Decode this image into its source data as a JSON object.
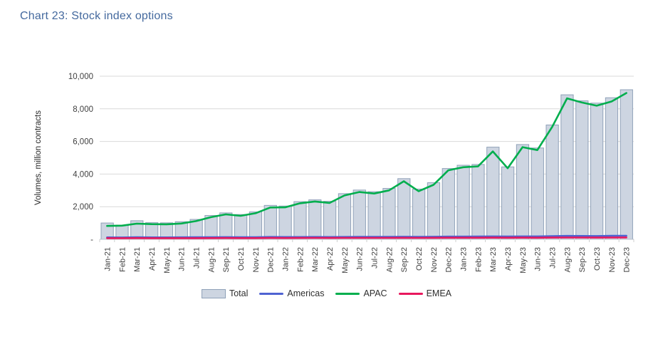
{
  "page": {
    "title": "Chart 23: Stock index options"
  },
  "colors": {
    "title_text": "#44699e",
    "bar_fill": "#cdd5e1",
    "bar_border": "#8fa1b8",
    "americas_line": "#4f63d2",
    "apac_line": "#00ae4d",
    "emea_line": "#e8185d",
    "gridline": "#d9d9d9",
    "axis_text": "#3f3f3f"
  },
  "chart_data": {
    "type": "bar",
    "subtype": "bar-with-lines-combo",
    "title": "Chart 23: Stock index options",
    "xlabel": "",
    "ylabel": "Volumes, million contracts",
    "ylim": [
      0,
      10000
    ],
    "ytick_interval": 2000,
    "ytick_labels": [
      "-",
      "2,000",
      "4,000",
      "6,000",
      "8,000",
      "10,000"
    ],
    "grid": "horizontal",
    "legend_position": "bottom",
    "categories": [
      "Jan-21",
      "Feb-21",
      "Mar-21",
      "Apr-21",
      "May-21",
      "Jun-21",
      "Jul-21",
      "Aug-21",
      "Sep-21",
      "Oct-21",
      "Nov-21",
      "Dec-21",
      "Jan-22",
      "Feb-22",
      "Mar-22",
      "Apr-22",
      "May-22",
      "Jun-22",
      "Jul-22",
      "Aug-22",
      "Sep-22",
      "Oct-22",
      "Nov-22",
      "Dec-22",
      "Jan-23",
      "Feb-23",
      "Mar-23",
      "Apr-23",
      "May-23",
      "Jun-23",
      "Jul-23",
      "Aug-23",
      "Sep-23",
      "Oct-23",
      "Nov-23",
      "Dec-23"
    ],
    "series": [
      {
        "name": "Total",
        "type": "bar",
        "color": "#cdd5e1",
        "border": "#8fa1b8",
        "values": [
          1000,
          870,
          1140,
          1020,
          1010,
          1080,
          1220,
          1460,
          1620,
          1520,
          1680,
          2080,
          2040,
          2310,
          2420,
          2330,
          2800,
          3020,
          2920,
          3120,
          3720,
          3080,
          3470,
          4340,
          4540,
          4590,
          5650,
          4440,
          5810,
          5600,
          7010,
          8860,
          8490,
          8350,
          8680,
          9170
        ]
      },
      {
        "name": "Americas",
        "type": "line",
        "color": "#4f63d2",
        "values": [
          120,
          115,
          125,
          120,
          118,
          122,
          126,
          130,
          135,
          128,
          132,
          142,
          138,
          140,
          144,
          140,
          146,
          150,
          148,
          152,
          158,
          150,
          156,
          166,
          168,
          172,
          178,
          170,
          180,
          178,
          192,
          210,
          205,
          200,
          215,
          220
        ]
      },
      {
        "name": "APAC",
        "type": "line",
        "color": "#00ae4d",
        "values": [
          820,
          840,
          960,
          930,
          920,
          970,
          1120,
          1360,
          1530,
          1440,
          1600,
          1950,
          1960,
          2210,
          2320,
          2230,
          2690,
          2900,
          2810,
          3000,
          3560,
          2950,
          3340,
          4230,
          4420,
          4470,
          5390,
          4360,
          5650,
          5470,
          6890,
          8640,
          8390,
          8190,
          8450,
          8970
        ]
      },
      {
        "name": "EMEA",
        "type": "line",
        "color": "#e8185d",
        "values": [
          70,
          68,
          74,
          70,
          68,
          72,
          72,
          76,
          78,
          73,
          76,
          84,
          80,
          82,
          86,
          82,
          86,
          88,
          86,
          88,
          92,
          86,
          90,
          96,
          95,
          96,
          100,
          95,
          100,
          98,
          105,
          110,
          108,
          105,
          110,
          112
        ]
      }
    ]
  }
}
